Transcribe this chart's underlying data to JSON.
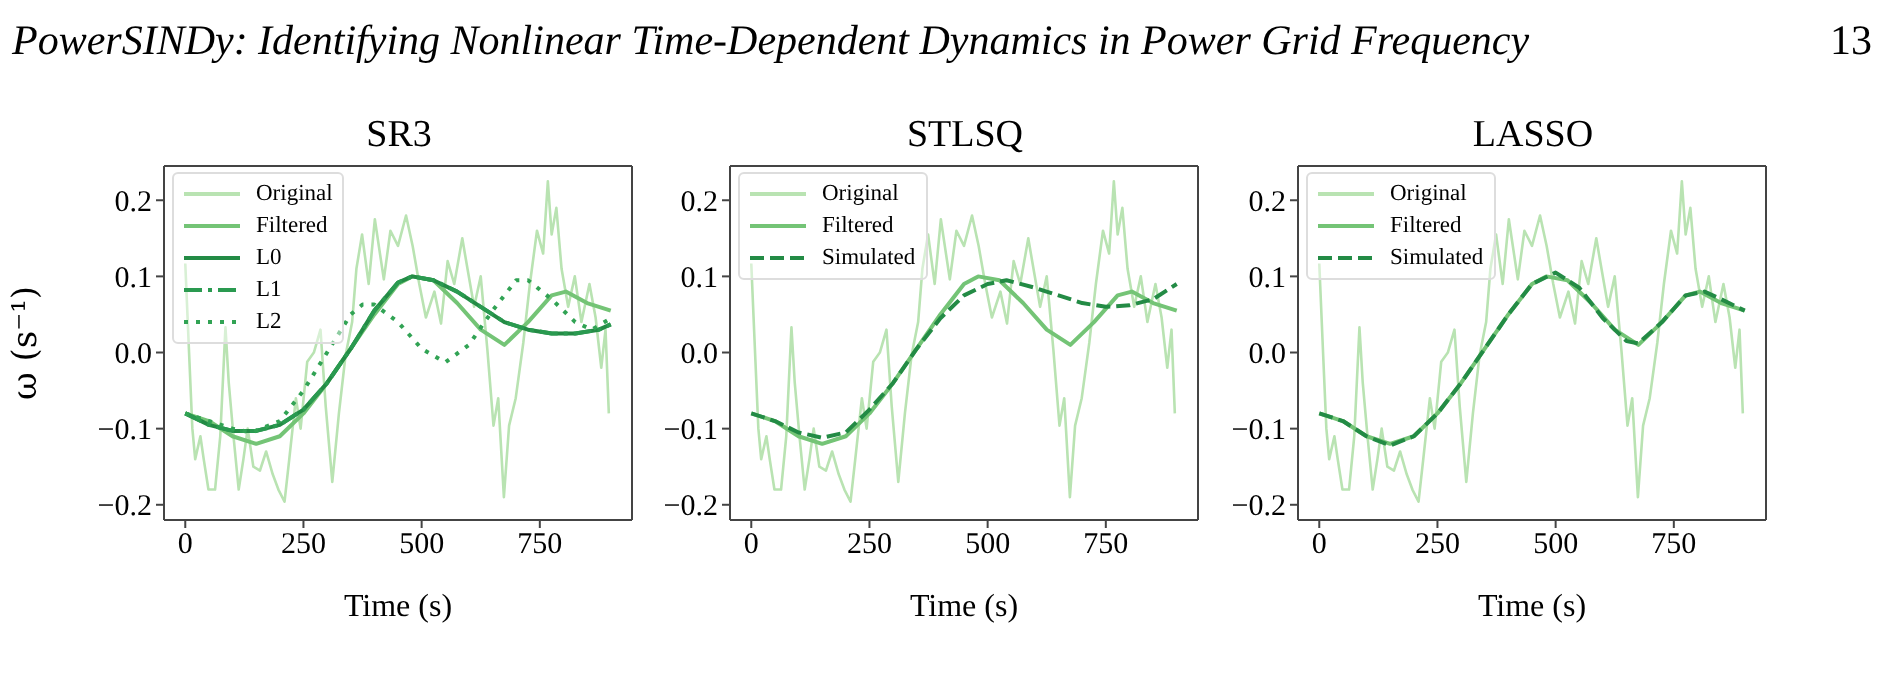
{
  "chart_data": [
    {
      "type": "line",
      "title": "SR3",
      "xlabel": "Time (s)",
      "ylabel": "ω (s⁻¹)",
      "legend": "top left",
      "annotations": [
        "PowerSINDy: Identifying Nonlinear Time-Dependent Dynamics in Power Grid Frequency",
        "13"
      ],
      "xlim": [
        -45,
        945
      ],
      "ylim": [
        -0.22,
        0.245
      ],
      "xticks": [
        0,
        250,
        500,
        750
      ],
      "yticks": [
        {
          "value": -0.2,
          "label": "−0.2"
        },
        {
          "value": -0.1,
          "label": "−0.1"
        },
        {
          "value": 0,
          "label": "0.0"
        },
        {
          "value": 0.1,
          "label": "0.1"
        },
        {
          "value": 0.2,
          "label": "0.2"
        }
      ],
      "series": [
        {
          "name": "Original",
          "color": "#b9e3b2",
          "line_style": "solid",
          "x": [
            0,
            8,
            15,
            21,
            32,
            39,
            49,
            63,
            74,
            85,
            92,
            102,
            113,
            123,
            132,
            144,
            158,
            171,
            185,
            197,
            210,
            220,
            234,
            244,
            258,
            272,
            286,
            297,
            311,
            325,
            339,
            353,
            362,
            374,
            388,
            401,
            420,
            434,
            450,
            467,
            481,
            495,
            509,
            527,
            541,
            555,
            569,
            586,
            597,
            611,
            625,
            639,
            652,
            662,
            674,
            685,
            699,
            715,
            729,
            744,
            757,
            767,
            775,
            785,
            796,
            810,
            824,
            838,
            855,
            868,
            880,
            889,
            896
          ],
          "values": [
            0.117,
            0.0,
            -0.1,
            -0.14,
            -0.11,
            -0.14,
            -0.18,
            -0.18,
            -0.11,
            0.033,
            -0.04,
            -0.11,
            -0.18,
            -0.14,
            -0.1,
            -0.15,
            -0.155,
            -0.13,
            -0.16,
            -0.18,
            -0.196,
            -0.14,
            -0.06,
            -0.1,
            -0.012,
            0.0,
            0.03,
            -0.07,
            -0.17,
            -0.08,
            -0.004,
            0.04,
            0.11,
            0.155,
            0.09,
            0.175,
            0.096,
            0.16,
            0.14,
            0.18,
            0.14,
            0.09,
            0.046,
            0.08,
            0.038,
            0.12,
            0.09,
            0.15,
            0.11,
            0.06,
            0.1,
            0.004,
            -0.096,
            -0.06,
            -0.19,
            -0.096,
            -0.06,
            0.0125,
            0.09,
            0.16,
            0.13,
            0.225,
            0.155,
            0.19,
            0.11,
            0.06,
            0.1,
            0.04,
            0.09,
            0.046,
            -0.02,
            0.03,
            -0.08
          ]
        },
        {
          "name": "Filtered",
          "color": "#74c476",
          "line_style": "solid",
          "x": [
            0,
            50,
            100,
            150,
            200,
            250,
            300,
            350,
            400,
            450,
            480,
            525,
            575,
            625,
            675,
            725,
            775,
            805,
            850,
            900
          ],
          "values": [
            -0.08,
            -0.09,
            -0.11,
            -0.12,
            -0.11,
            -0.08,
            -0.04,
            0.005,
            0.05,
            0.09,
            0.1,
            0.095,
            0.065,
            0.03,
            0.01,
            0.04,
            0.075,
            0.08,
            0.065,
            0.055
          ]
        },
        {
          "name": "L0",
          "color": "#238b45",
          "line_style": "solid",
          "x": [
            0,
            50,
            100,
            150,
            200,
            250,
            300,
            350,
            400,
            450,
            480,
            525,
            575,
            625,
            675,
            725,
            775,
            825,
            875,
            900
          ],
          "values": [
            -0.08,
            -0.095,
            -0.103,
            -0.103,
            -0.095,
            -0.075,
            -0.04,
            0.005,
            0.055,
            0.092,
            0.1,
            0.095,
            0.08,
            0.06,
            0.04,
            0.03,
            0.025,
            0.025,
            0.03,
            0.037
          ]
        },
        {
          "name": "L1",
          "color": "#2a9a50",
          "line_style": "dashdot",
          "x": [
            0,
            50,
            100,
            150,
            200,
            250,
            300,
            350,
            400,
            450,
            480,
            525,
            575,
            625,
            675,
            725,
            775,
            825,
            875,
            900
          ],
          "values": [
            -0.08,
            -0.095,
            -0.103,
            -0.103,
            -0.095,
            -0.075,
            -0.04,
            0.005,
            0.055,
            0.092,
            0.1,
            0.095,
            0.08,
            0.06,
            0.04,
            0.03,
            0.025,
            0.025,
            0.03,
            0.037
          ]
        },
        {
          "name": "L2",
          "color": "#31a354",
          "line_style": "dotted",
          "x": [
            0,
            50,
            100,
            140,
            200,
            250,
            300,
            350,
            375,
            400,
            450,
            500,
            550,
            600,
            650,
            700,
            725,
            775,
            825,
            860,
            900
          ],
          "values": [
            -0.08,
            -0.09,
            -0.1,
            -0.105,
            -0.09,
            -0.05,
            0.0,
            0.05,
            0.063,
            0.063,
            0.04,
            0.005,
            -0.013,
            0.01,
            0.055,
            0.095,
            0.095,
            0.07,
            0.04,
            0.03,
            0.045
          ]
        }
      ]
    },
    {
      "type": "line",
      "title": "STLSQ",
      "xlabel": "Time (s)",
      "legend": "top left",
      "xlim": [
        -45,
        945
      ],
      "ylim": [
        -0.22,
        0.245
      ],
      "xticks": [
        0,
        250,
        500,
        750
      ],
      "yticks": [
        {
          "value": -0.2,
          "label": "−0.2"
        },
        {
          "value": -0.1,
          "label": "−0.1"
        },
        {
          "value": 0,
          "label": "0.0"
        },
        {
          "value": 0.1,
          "label": "0.1"
        },
        {
          "value": 0.2,
          "label": "0.2"
        }
      ],
      "series": [
        {
          "name": "Original",
          "color": "#b9e3b2",
          "line_style": "solid",
          "x": [
            0,
            8,
            15,
            21,
            32,
            39,
            49,
            63,
            74,
            85,
            92,
            102,
            113,
            123,
            132,
            144,
            158,
            171,
            185,
            197,
            210,
            220,
            234,
            244,
            258,
            272,
            286,
            297,
            311,
            325,
            339,
            353,
            362,
            374,
            388,
            401,
            420,
            434,
            450,
            467,
            481,
            495,
            509,
            527,
            541,
            555,
            569,
            586,
            597,
            611,
            625,
            639,
            652,
            662,
            674,
            685,
            699,
            715,
            729,
            744,
            757,
            767,
            775,
            785,
            796,
            810,
            824,
            838,
            855,
            868,
            880,
            889,
            896
          ],
          "values": [
            0.117,
            0.0,
            -0.1,
            -0.14,
            -0.11,
            -0.14,
            -0.18,
            -0.18,
            -0.11,
            0.033,
            -0.04,
            -0.11,
            -0.18,
            -0.14,
            -0.1,
            -0.15,
            -0.155,
            -0.13,
            -0.16,
            -0.18,
            -0.196,
            -0.14,
            -0.06,
            -0.1,
            -0.012,
            0.0,
            0.03,
            -0.07,
            -0.17,
            -0.08,
            -0.004,
            0.04,
            0.11,
            0.155,
            0.09,
            0.175,
            0.096,
            0.16,
            0.14,
            0.18,
            0.14,
            0.09,
            0.046,
            0.08,
            0.038,
            0.12,
            0.09,
            0.15,
            0.11,
            0.06,
            0.1,
            0.004,
            -0.096,
            -0.06,
            -0.19,
            -0.096,
            -0.06,
            0.0125,
            0.09,
            0.16,
            0.13,
            0.225,
            0.155,
            0.19,
            0.11,
            0.06,
            0.1,
            0.04,
            0.09,
            0.046,
            -0.02,
            0.03,
            -0.08
          ]
        },
        {
          "name": "Filtered",
          "color": "#74c476",
          "line_style": "solid",
          "x": [
            0,
            50,
            100,
            150,
            200,
            250,
            300,
            350,
            400,
            450,
            480,
            525,
            575,
            625,
            675,
            725,
            775,
            805,
            850,
            900
          ],
          "values": [
            -0.08,
            -0.09,
            -0.11,
            -0.12,
            -0.11,
            -0.08,
            -0.04,
            0.005,
            0.05,
            0.09,
            0.1,
            0.095,
            0.065,
            0.03,
            0.01,
            0.04,
            0.075,
            0.08,
            0.065,
            0.055
          ]
        },
        {
          "name": "Simulated",
          "color": "#238b45",
          "line_style": "dashed",
          "x": [
            0,
            50,
            100,
            150,
            200,
            250,
            300,
            350,
            400,
            450,
            500,
            540,
            600,
            650,
            700,
            750,
            800,
            850,
            900
          ],
          "values": [
            -0.08,
            -0.09,
            -0.105,
            -0.112,
            -0.105,
            -0.075,
            -0.04,
            0.005,
            0.045,
            0.075,
            0.09,
            0.095,
            0.085,
            0.075,
            0.065,
            0.06,
            0.062,
            0.07,
            0.09
          ]
        }
      ]
    },
    {
      "type": "line",
      "title": "LASSO",
      "xlabel": "Time (s)",
      "legend": "top left",
      "xlim": [
        -45,
        945
      ],
      "ylim": [
        -0.22,
        0.245
      ],
      "xticks": [
        0,
        250,
        500,
        750
      ],
      "yticks": [
        {
          "value": -0.2,
          "label": "−0.2"
        },
        {
          "value": -0.1,
          "label": "−0.1"
        },
        {
          "value": 0,
          "label": "0.0"
        },
        {
          "value": 0.1,
          "label": "0.1"
        },
        {
          "value": 0.2,
          "label": "0.2"
        }
      ],
      "series": [
        {
          "name": "Original",
          "color": "#b9e3b2",
          "line_style": "solid",
          "x": [
            0,
            8,
            15,
            21,
            32,
            39,
            49,
            63,
            74,
            85,
            92,
            102,
            113,
            123,
            132,
            144,
            158,
            171,
            185,
            197,
            210,
            220,
            234,
            244,
            258,
            272,
            286,
            297,
            311,
            325,
            339,
            353,
            362,
            374,
            388,
            401,
            420,
            434,
            450,
            467,
            481,
            495,
            509,
            527,
            541,
            555,
            569,
            586,
            597,
            611,
            625,
            639,
            652,
            662,
            674,
            685,
            699,
            715,
            729,
            744,
            757,
            767,
            775,
            785,
            796,
            810,
            824,
            838,
            855,
            868,
            880,
            889,
            896
          ],
          "values": [
            0.117,
            0.0,
            -0.1,
            -0.14,
            -0.11,
            -0.14,
            -0.18,
            -0.18,
            -0.11,
            0.033,
            -0.04,
            -0.11,
            -0.18,
            -0.14,
            -0.1,
            -0.15,
            -0.155,
            -0.13,
            -0.16,
            -0.18,
            -0.196,
            -0.14,
            -0.06,
            -0.1,
            -0.012,
            0.0,
            0.03,
            -0.07,
            -0.17,
            -0.08,
            -0.004,
            0.04,
            0.11,
            0.155,
            0.09,
            0.175,
            0.096,
            0.16,
            0.14,
            0.18,
            0.14,
            0.09,
            0.046,
            0.08,
            0.038,
            0.12,
            0.09,
            0.15,
            0.11,
            0.06,
            0.1,
            0.004,
            -0.096,
            -0.06,
            -0.19,
            -0.096,
            -0.06,
            0.0125,
            0.09,
            0.16,
            0.13,
            0.225,
            0.155,
            0.19,
            0.11,
            0.06,
            0.1,
            0.04,
            0.09,
            0.046,
            -0.02,
            0.03,
            -0.08
          ]
        },
        {
          "name": "Filtered",
          "color": "#74c476",
          "line_style": "solid",
          "x": [
            0,
            50,
            100,
            150,
            200,
            250,
            300,
            350,
            400,
            450,
            480,
            525,
            575,
            625,
            675,
            725,
            775,
            805,
            850,
            900
          ],
          "values": [
            -0.08,
            -0.09,
            -0.11,
            -0.12,
            -0.11,
            -0.08,
            -0.04,
            0.005,
            0.05,
            0.09,
            0.1,
            0.095,
            0.065,
            0.03,
            0.01,
            0.04,
            0.075,
            0.08,
            0.065,
            0.055
          ]
        },
        {
          "name": "Simulated",
          "color": "#238b45",
          "line_style": "dashed",
          "x": [
            0,
            50,
            100,
            150,
            200,
            250,
            300,
            350,
            400,
            450,
            500,
            550,
            600,
            650,
            675,
            725,
            775,
            815,
            850,
            900
          ],
          "values": [
            -0.08,
            -0.09,
            -0.11,
            -0.122,
            -0.11,
            -0.08,
            -0.04,
            0.005,
            0.05,
            0.09,
            0.105,
            0.085,
            0.045,
            0.015,
            0.012,
            0.04,
            0.075,
            0.08,
            0.07,
            0.055
          ]
        }
      ]
    }
  ]
}
